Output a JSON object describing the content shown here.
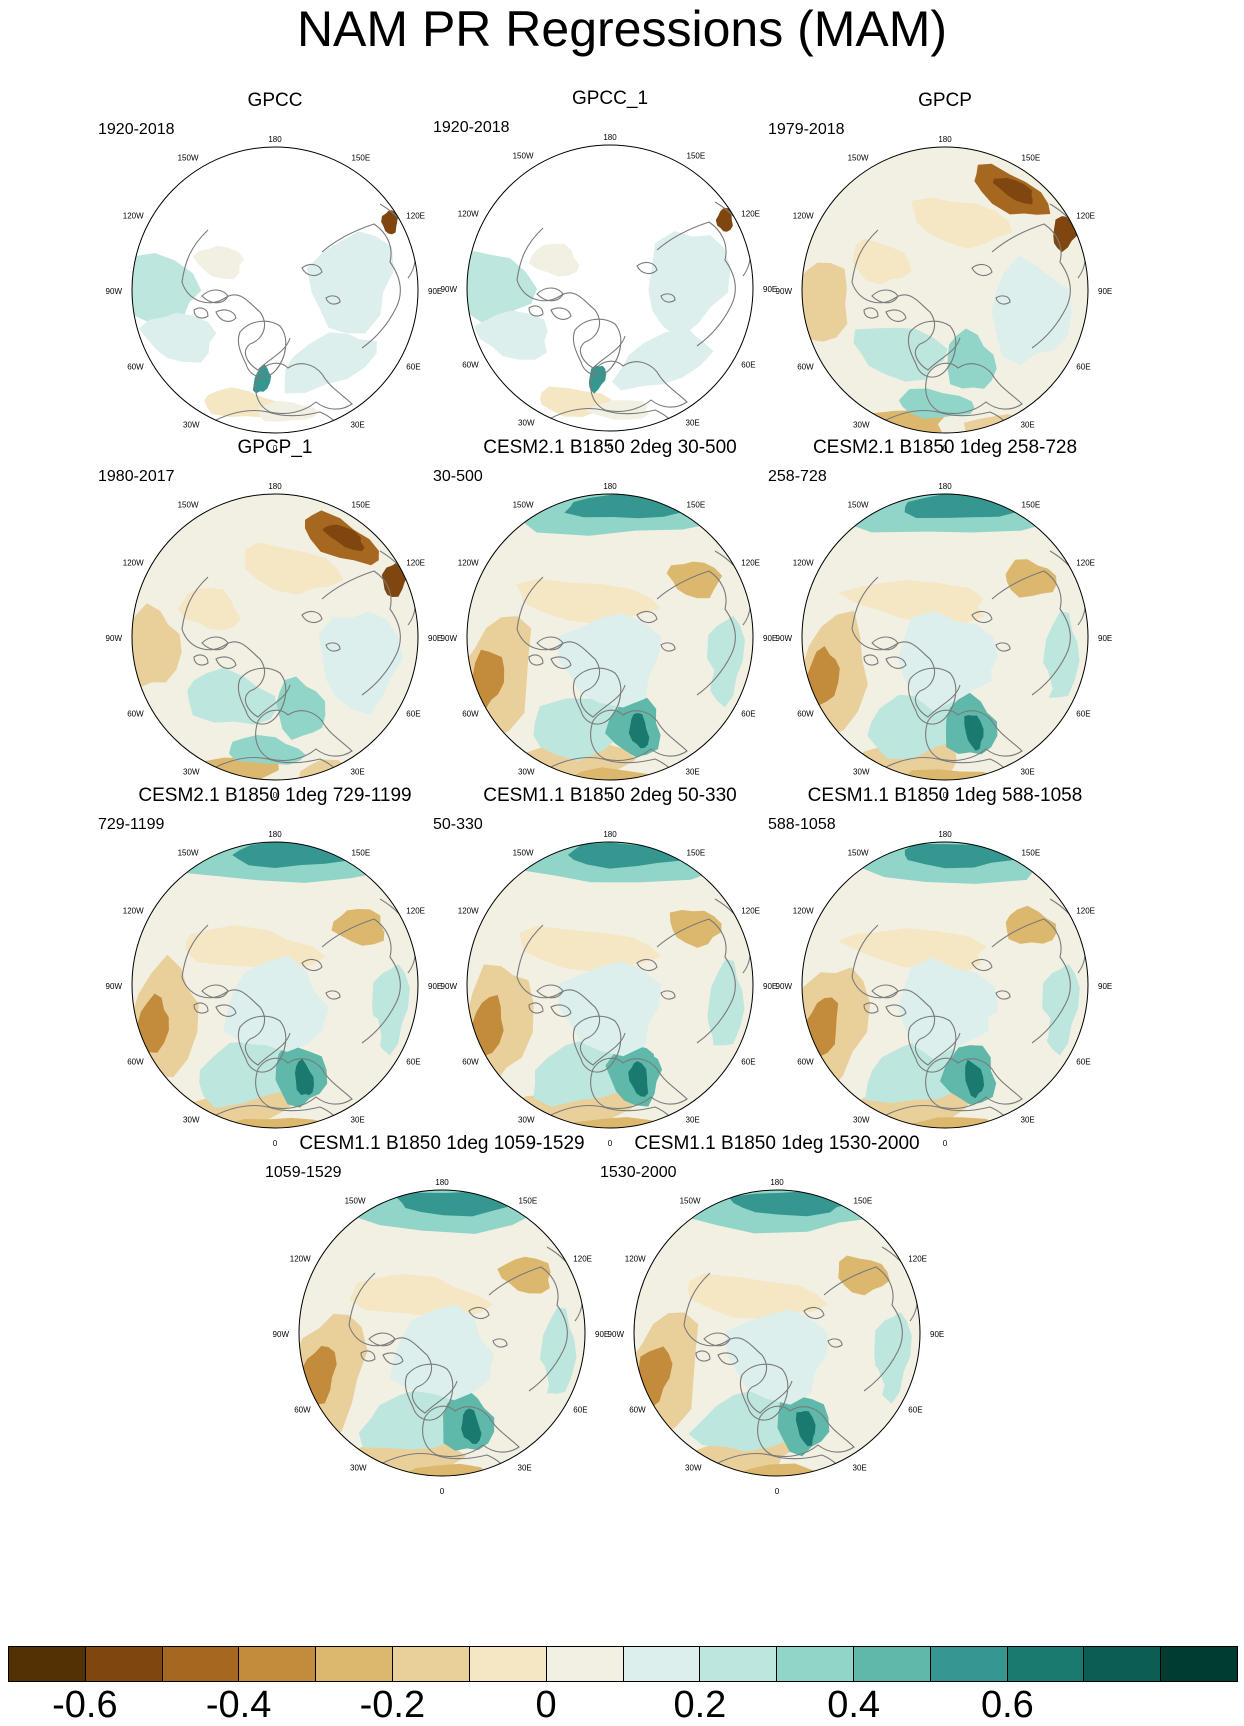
{
  "title": "NAM PR Regressions (MAM)",
  "map_labels": {
    "lon_180": "180",
    "lon_150E": "150E",
    "lon_120E": "120E",
    "lon_90E": "90E",
    "lon_60E": "60E",
    "lon_30E": "30E",
    "lon_0": "0",
    "lon_30W": "30W",
    "lon_60W": "60W",
    "lon_90W": "90W",
    "lon_120W": "120W",
    "lon_150W": "150W"
  },
  "panels": [
    {
      "title": "GPCC",
      "period": "1920-2018",
      "masked": true
    },
    {
      "title": "GPCC_1",
      "period": "1920-2018",
      "masked": true
    },
    {
      "title": "GPCP",
      "period": "1979-2018",
      "masked": false
    },
    {
      "title": "GPCP_1",
      "period": "1980-2017",
      "masked": false
    },
    {
      "title": "CESM2.1 B1850 2deg 30-500",
      "period": "30-500",
      "masked": false
    },
    {
      "title": "CESM2.1 B1850 1deg 258-728",
      "period": "258-728",
      "masked": false
    },
    {
      "title": "CESM2.1 B1850 1deg 729-1199",
      "period": "729-1199",
      "masked": false
    },
    {
      "title": "CESM1.1 B1850 2deg 50-330",
      "period": "50-330",
      "masked": false
    },
    {
      "title": "CESM1.1 B1850 1deg 588-1058",
      "period": "588-1058",
      "masked": false
    },
    {
      "title": "CESM1.1 B1850 1deg 1059-1529",
      "period": "1059-1529",
      "masked": false
    },
    {
      "title": "CESM1.1 B1850 1deg 1530-2000",
      "period": "1530-2000",
      "masked": false
    }
  ],
  "colorbar": {
    "colors": [
      "#543005",
      "#7f470f",
      "#a66720",
      "#c38b3c",
      "#dbb86e",
      "#e9d09a",
      "#f5e6c4",
      "#f2efe3",
      "#dcefed",
      "#bde6df",
      "#90d5c8",
      "#5fb8a9",
      "#35978f",
      "#1b7a70",
      "#0b5e54",
      "#003c30"
    ],
    "tick_labels": [
      "-0.6",
      "-0.4",
      "-0.2",
      "0",
      "0.2",
      "0.4",
      "0.6"
    ],
    "tick_positions": [
      1,
      3,
      5,
      7,
      9,
      11,
      13
    ]
  }
}
